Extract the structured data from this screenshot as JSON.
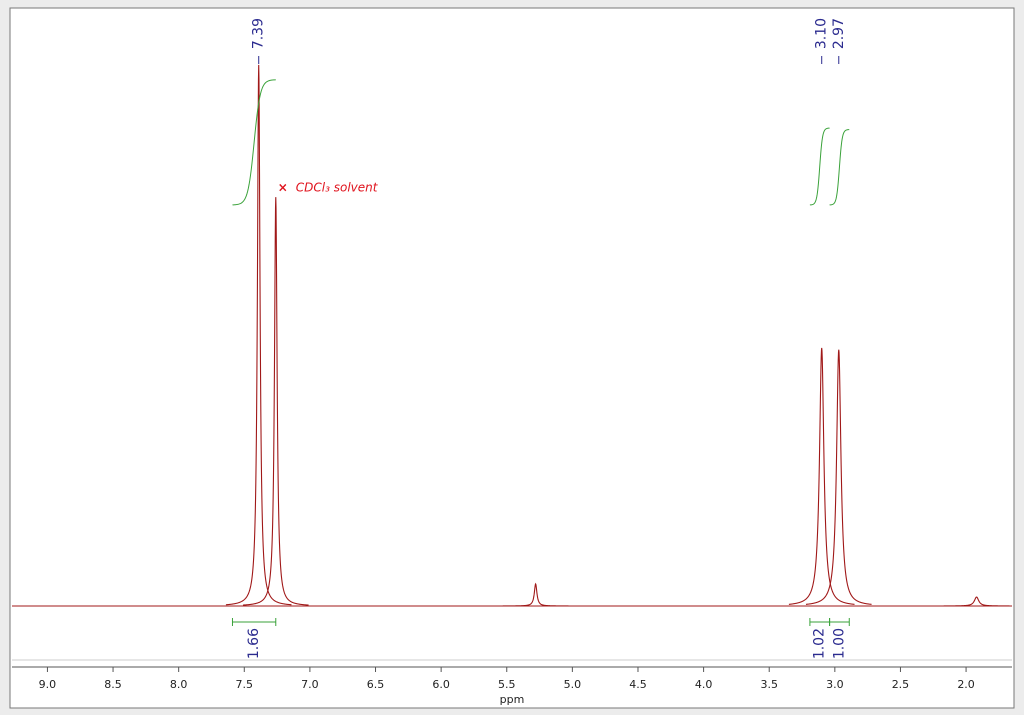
{
  "chart_data": {
    "type": "nmr",
    "x_label": "ppm",
    "xlim": [
      9.27,
      1.65
    ],
    "xticks": [
      {
        "value": 9,
        "label": "9.0"
      },
      8.5,
      {
        "value": 8,
        "label": "8.0"
      },
      7.5,
      {
        "value": 7,
        "label": "7.0"
      },
      6.5,
      {
        "value": 6,
        "label": "6.0"
      },
      5.5,
      {
        "value": 5,
        "label": "5.0"
      },
      4.5,
      {
        "value": 4,
        "label": "4.0"
      },
      3.5,
      {
        "value": 3,
        "label": "3.0"
      },
      2.5,
      {
        "value": 2,
        "label": "2.0"
      }
    ],
    "ylim": [
      0,
      100
    ],
    "color": "#a01818",
    "peaks": [
      {
        "x": 7.39,
        "value": 90.8,
        "label": "7.39"
      },
      {
        "x": 7.26,
        "value": 68.6
      },
      {
        "x": 5.28,
        "value": 3.7
      },
      {
        "x": 3.1,
        "value": 43.3,
        "label": "3.10"
      },
      {
        "x": 2.97,
        "value": 43.0,
        "label": "2.97"
      },
      {
        "x": 1.92,
        "value": 1.5
      }
    ],
    "integrals": [
      {
        "from": 7.59,
        "to": 7.26,
        "value": 1.66,
        "label": "1.66"
      },
      {
        "from": 3.19,
        "to": 3.04,
        "value": 1.02,
        "label": "1.02"
      },
      {
        "from": 3.04,
        "to": 2.89,
        "value": 1.0,
        "label": "1.00"
      }
    ],
    "annotation": {
      "text": "CDCl₃ solvent",
      "x": 7.26
    }
  }
}
